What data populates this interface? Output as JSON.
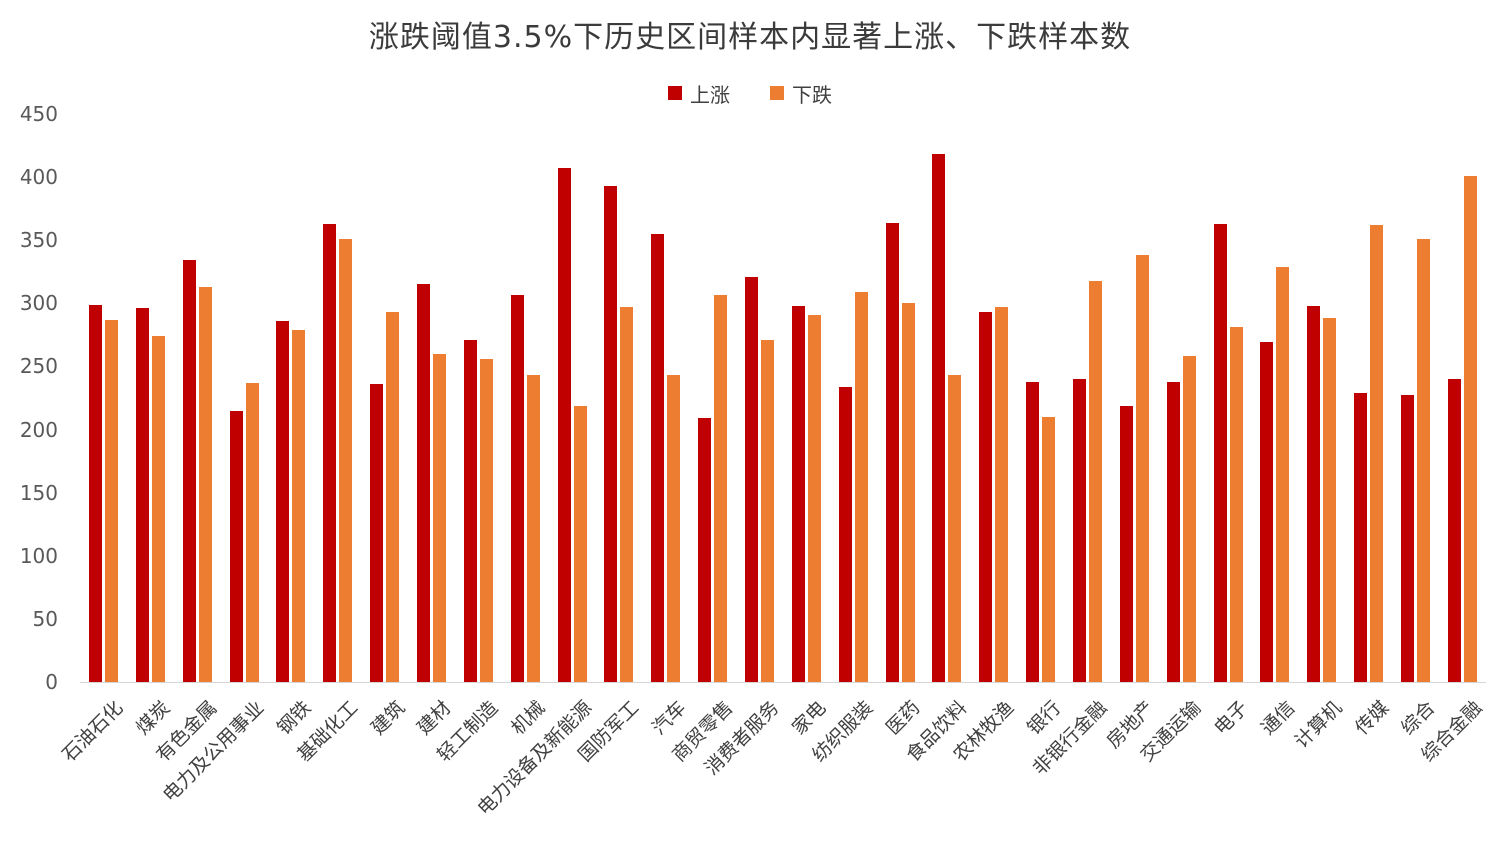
{
  "title": "涨跌阈值3.5%下历史区间样本内显著上涨、下跌样本数",
  "legend": {
    "up_label": "上涨",
    "down_label": "下跌"
  },
  "colors": {
    "up": "#C00000",
    "down": "#ED7D31",
    "axis_line": "#d6d6d6"
  },
  "chart_data": {
    "type": "bar",
    "title": "涨跌阈值3.5%下历史区间样本内显著上涨、下跌样本数",
    "legend_position": "top",
    "grid": false,
    "ylim": [
      0,
      450
    ],
    "ytick_step": 50,
    "xlabel": "",
    "ylabel": "",
    "categories": [
      "石油石化",
      "煤炭",
      "有色金属",
      "电力及公用事业",
      "钢铁",
      "基础化工",
      "建筑",
      "建材",
      "轻工制造",
      "机械",
      "电力设备及新能源",
      "国防军工",
      "汽车",
      "商贸零售",
      "消费者服务",
      "家电",
      "纺织服装",
      "医药",
      "食品饮料",
      "农林牧渔",
      "银行",
      "非银行金融",
      "房地产",
      "交通运输",
      "电子",
      "通信",
      "计算机",
      "传媒",
      "综合",
      "综合金融"
    ],
    "series": [
      {
        "name": "上涨",
        "color": "#C00000",
        "values": [
          299,
          296,
          334,
          215,
          286,
          363,
          236,
          315,
          271,
          307,
          407,
          393,
          355,
          209,
          321,
          298,
          234,
          364,
          418,
          293,
          238,
          240,
          219,
          238,
          363,
          269,
          298,
          229,
          227,
          240
        ]
      },
      {
        "name": "下跌",
        "color": "#ED7D31",
        "values": [
          287,
          274,
          313,
          237,
          279,
          351,
          293,
          260,
          256,
          243,
          219,
          297,
          243,
          307,
          271,
          291,
          309,
          300,
          243,
          297,
          210,
          318,
          338,
          258,
          281,
          329,
          288,
          362,
          351,
          401
        ]
      }
    ]
  }
}
